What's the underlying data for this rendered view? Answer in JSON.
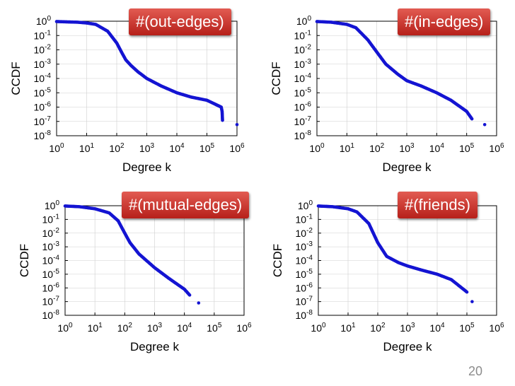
{
  "slide_number": "20",
  "colors": {
    "marker": "#1414d2",
    "badge_top": "#e25b52",
    "badge_bottom": "#b6201a",
    "grid": "#cfcfcf"
  },
  "chart_data": [
    {
      "type": "scatter",
      "title": "#(out-edges)",
      "xlabel": "Degree k",
      "ylabel": "CCDF",
      "xscale": "log",
      "yscale": "log",
      "xlim": [
        1,
        1000000
      ],
      "ylim": [
        1e-08,
        1
      ],
      "x_ticks": [
        "10^0",
        "10^1",
        "10^2",
        "10^3",
        "10^4",
        "10^5",
        "10^6"
      ],
      "y_ticks": [
        "10^0",
        "10^-1",
        "10^-2",
        "10^-3",
        "10^-4",
        "10^-5",
        "10^-6",
        "10^-7",
        "10^-8"
      ],
      "grid": true,
      "curve": [
        [
          1,
          0.95
        ],
        [
          2,
          0.9
        ],
        [
          5,
          0.85
        ],
        [
          10,
          0.75
        ],
        [
          20,
          0.6
        ],
        [
          50,
          0.2
        ],
        [
          100,
          0.03
        ],
        [
          150,
          0.006
        ],
        [
          200,
          0.002
        ],
        [
          300,
          0.0008
        ],
        [
          500,
          0.0003
        ],
        [
          1000,
          0.0001
        ],
        [
          3000,
          3e-05
        ],
        [
          10000,
          1e-05
        ],
        [
          30000,
          5e-06
        ],
        [
          100000,
          3e-06
        ],
        [
          300000,
          1e-06
        ],
        [
          320000,
          5e-07
        ],
        [
          330000,
          1.2e-07
        ],
        [
          1000000,
          6e-08
        ]
      ]
    },
    {
      "type": "scatter",
      "title": "#(in-edges)",
      "xlabel": "Degree k",
      "ylabel": "CCDF",
      "xscale": "log",
      "yscale": "log",
      "xlim": [
        1,
        1000000
      ],
      "ylim": [
        1e-08,
        1
      ],
      "x_ticks": [
        "10^0",
        "10^1",
        "10^2",
        "10^3",
        "10^4",
        "10^5",
        "10^6"
      ],
      "y_ticks": [
        "10^0",
        "10^-1",
        "10^-2",
        "10^-3",
        "10^-4",
        "10^-5",
        "10^-6",
        "10^-7",
        "10^-8"
      ],
      "grid": true,
      "curve": [
        [
          1,
          0.95
        ],
        [
          3,
          0.85
        ],
        [
          10,
          0.6
        ],
        [
          20,
          0.35
        ],
        [
          50,
          0.05
        ],
        [
          100,
          0.007
        ],
        [
          200,
          0.001
        ],
        [
          500,
          0.0002
        ],
        [
          1000,
          7e-05
        ],
        [
          3000,
          3e-05
        ],
        [
          10000,
          1e-05
        ],
        [
          30000,
          3e-06
        ],
        [
          100000,
          5e-07
        ],
        [
          150000,
          1.5e-07
        ],
        [
          400000,
          6e-08
        ]
      ]
    },
    {
      "type": "scatter",
      "title": "#(mutual-edges)",
      "xlabel": "Degree k",
      "ylabel": "CCDF",
      "xscale": "log",
      "yscale": "log",
      "xlim": [
        1,
        1000000
      ],
      "ylim": [
        1e-08,
        1
      ],
      "x_ticks": [
        "10^0",
        "10^1",
        "10^2",
        "10^3",
        "10^4",
        "10^5",
        "10^6"
      ],
      "y_ticks": [
        "10^0",
        "10^-1",
        "10^-2",
        "10^-3",
        "10^-4",
        "10^-5",
        "10^-6",
        "10^-7",
        "10^-8"
      ],
      "grid": true,
      "curve": [
        [
          1,
          0.95
        ],
        [
          3,
          0.85
        ],
        [
          10,
          0.6
        ],
        [
          30,
          0.3
        ],
        [
          60,
          0.08
        ],
        [
          100,
          0.01
        ],
        [
          150,
          0.002
        ],
        [
          300,
          0.0003
        ],
        [
          1000,
          3e-05
        ],
        [
          3000,
          5e-06
        ],
        [
          10000,
          8e-07
        ],
        [
          15000,
          3e-07
        ],
        [
          30000,
          8e-08
        ]
      ]
    },
    {
      "type": "scatter",
      "title": "#(friends)",
      "xlabel": "Degree k",
      "ylabel": "CCDF",
      "xscale": "log",
      "yscale": "log",
      "xlim": [
        1,
        1000000
      ],
      "ylim": [
        1e-08,
        1
      ],
      "x_ticks": [
        "10^0",
        "10^1",
        "10^2",
        "10^3",
        "10^4",
        "10^5",
        "10^6"
      ],
      "y_ticks": [
        "10^0",
        "10^-1",
        "10^-2",
        "10^-3",
        "10^-4",
        "10^-5",
        "10^-6",
        "10^-7",
        "10^-8"
      ],
      "grid": true,
      "curve": [
        [
          1,
          0.95
        ],
        [
          3,
          0.85
        ],
        [
          10,
          0.6
        ],
        [
          20,
          0.35
        ],
        [
          50,
          0.05
        ],
        [
          100,
          0.002
        ],
        [
          200,
          0.0002
        ],
        [
          500,
          7e-05
        ],
        [
          1000,
          4e-05
        ],
        [
          3000,
          2e-05
        ],
        [
          10000,
          1e-05
        ],
        [
          30000,
          4e-06
        ],
        [
          100000,
          5e-07
        ],
        [
          150000,
          1e-07
        ]
      ]
    }
  ]
}
